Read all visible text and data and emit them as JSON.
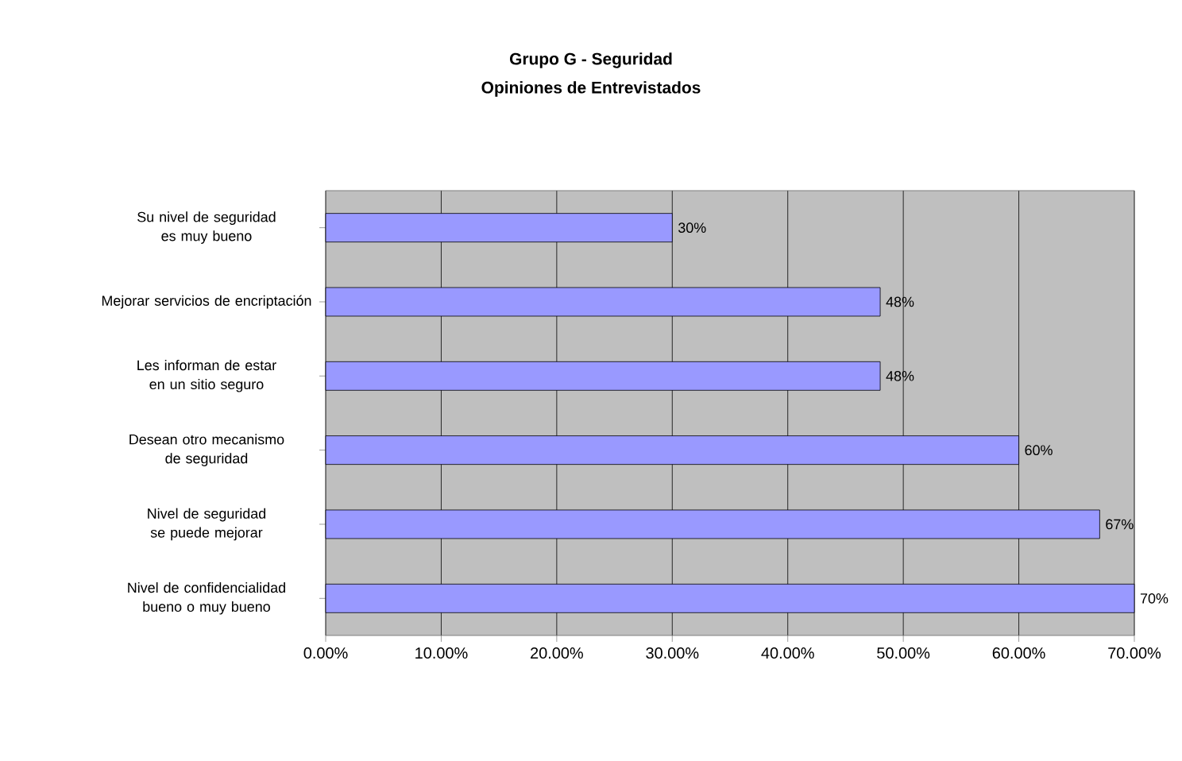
{
  "chart_data": {
    "type": "bar",
    "orientation": "horizontal",
    "title": "Grupo G - Seguridad",
    "subtitle": "Opiniones de Entrevistados",
    "categories": [
      "Su nivel de seguridad es muy bueno",
      "Mejorar servicios de encriptación",
      "Les informan de estar en un sitio seguro",
      "Desean otro mecanismo de seguridad",
      "Nivel de seguridad se puede mejorar",
      "Nivel de confidencialidad bueno o muy bueno"
    ],
    "values": [
      30,
      48,
      48,
      60,
      67,
      70
    ],
    "value_labels": [
      "30%",
      "48%",
      "48%",
      "60%",
      "67%",
      "70%"
    ],
    "color": "#9999ff",
    "xlim": [
      0,
      70
    ],
    "xticks": [
      {
        "value": 0,
        "label": "0.00%"
      },
      {
        "value": 10,
        "label": "10.00%"
      },
      {
        "value": 20,
        "label": "20.00%"
      },
      {
        "value": 30,
        "label": "30.00%"
      },
      {
        "value": 40,
        "label": "40.00%"
      },
      {
        "value": 50,
        "label": "50.00%"
      },
      {
        "value": 60,
        "label": "60.00%"
      },
      {
        "value": 70,
        "label": "70.00%"
      }
    ],
    "grid": "x"
  }
}
